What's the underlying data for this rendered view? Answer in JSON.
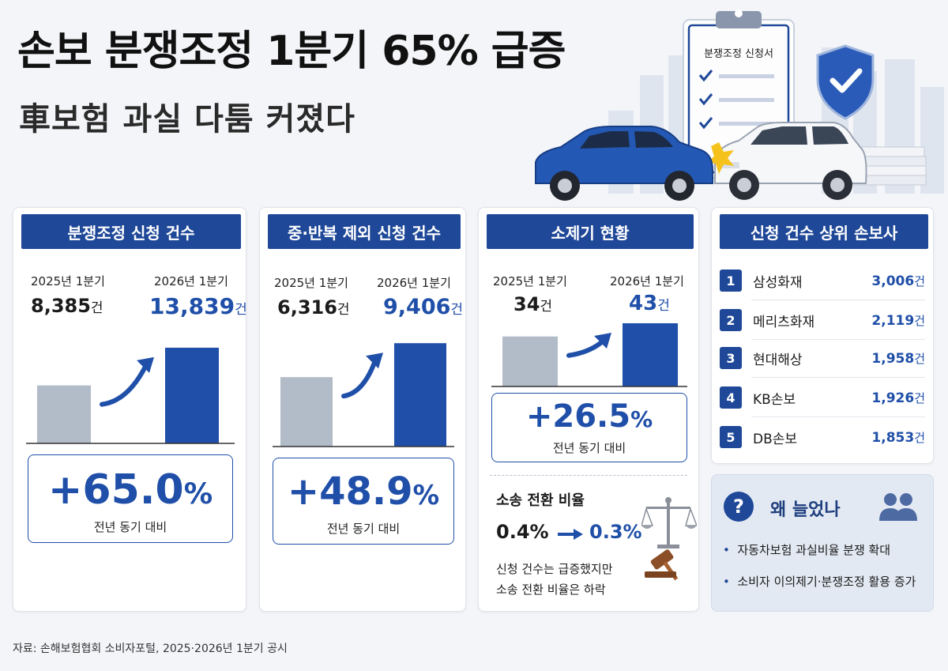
{
  "header": {
    "title": "손보 분쟁조정 1분기 65% 급증",
    "subtitle": "車보험 과실 다툼 커졌다"
  },
  "hero": {
    "clipboard_title": "분쟁조정 신청서"
  },
  "panels": {
    "applications": {
      "title": "분쟁조정 신청 건수",
      "prev_label": "2025년 1분기",
      "curr_label": "2026년 1분기",
      "prev_value": "8,385",
      "curr_value": "13,839",
      "unit": "건",
      "change": "+65.0",
      "change_unit": "%",
      "compare": "전년 동기 대비"
    },
    "excluding_repeats": {
      "title": "중·반복 제외 신청 건수",
      "prev_label": "2025년 1분기",
      "curr_label": "2026년 1분기",
      "prev_value": "6,316",
      "curr_value": "9,406",
      "unit": "건",
      "change": "+48.9",
      "change_unit": "%",
      "compare": "전년 동기 대비"
    },
    "lawsuits": {
      "title": "소제기 현황",
      "prev_label": "2025년 1분기",
      "curr_label": "2026년 1분기",
      "prev_value": "34",
      "curr_value": "43",
      "unit": "건",
      "change": "+26.5",
      "change_unit": "%",
      "compare": "전년 동기 대비",
      "conversion_title": "소송 전환 비율",
      "conversion_prev": "0.4%",
      "conversion_curr": "0.3%",
      "note_line1": "신청 건수는 급증했지만",
      "note_line2": "소송 전환 비율은 하락"
    },
    "top_insurers": {
      "title": "신청 건수 상위 손보사",
      "unit": "건",
      "items": [
        {
          "rank": "1",
          "name": "삼성화재",
          "value": "3,006"
        },
        {
          "rank": "2",
          "name": "메리츠화재",
          "value": "2,119"
        },
        {
          "rank": "3",
          "name": "현대해상",
          "value": "1,958"
        },
        {
          "rank": "4",
          "name": "KB손보",
          "value": "1,926"
        },
        {
          "rank": "5",
          "name": "DB손보",
          "value": "1,853"
        }
      ]
    },
    "why": {
      "title": "왜 늘었나",
      "bullets": [
        "자동차보험 과실비율 분쟁 확대",
        "소비자 이의제기·분쟁조정 활용 증가"
      ]
    }
  },
  "chart_data": [
    {
      "type": "bar",
      "title": "분쟁조정 신청 건수",
      "categories": [
        "2025년 1분기",
        "2026년 1분기"
      ],
      "values": [
        8385,
        13839
      ],
      "ylim": [
        0,
        16000
      ],
      "colors": [
        "#b2bbc8",
        "#1f4fa8"
      ]
    },
    {
      "type": "bar",
      "title": "중·반복 제외 신청 건수",
      "categories": [
        "2025년 1분기",
        "2026년 1분기"
      ],
      "values": [
        6316,
        9406
      ],
      "ylim": [
        0,
        10500
      ],
      "colors": [
        "#b2bbc8",
        "#1f4fa8"
      ]
    },
    {
      "type": "bar",
      "title": "소제기 현황",
      "categories": [
        "2025년 1분기",
        "2026년 1분기"
      ],
      "values": [
        34,
        43
      ],
      "ylim": [
        0,
        50
      ],
      "colors": [
        "#b2bbc8",
        "#1f4fa8"
      ]
    },
    {
      "type": "table",
      "title": "신청 건수 상위 손보사",
      "categories": [
        "삼성화재",
        "메리츠화재",
        "현대해상",
        "KB손보",
        "DB손보"
      ],
      "values": [
        3006,
        2119,
        1958,
        1926,
        1853
      ]
    }
  ],
  "footer": {
    "source": "자료: 손해보험협회 소비자포털, 2025·2026년 1분기 공시"
  }
}
